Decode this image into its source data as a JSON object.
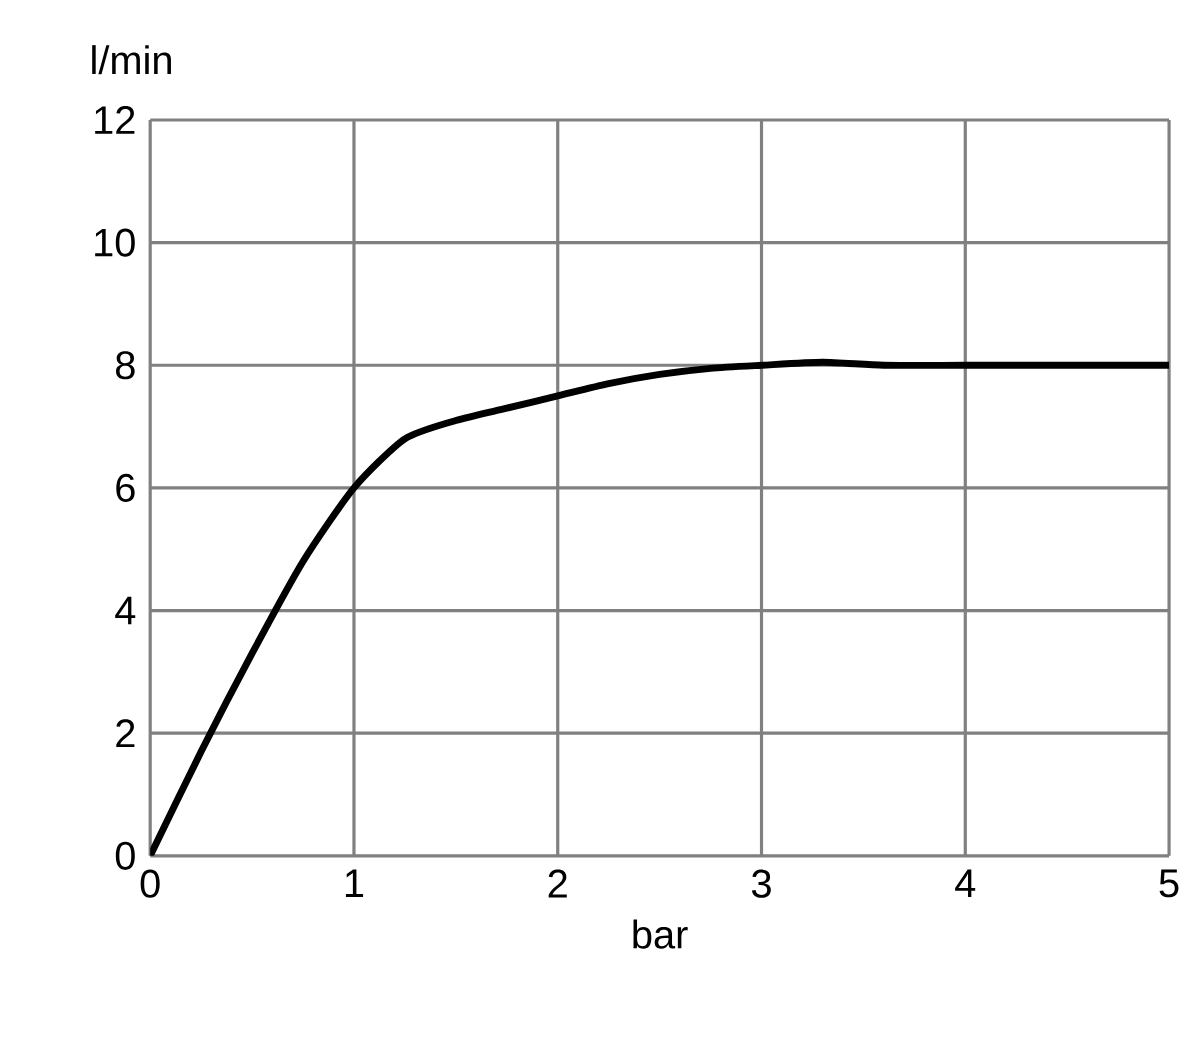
{
  "chart_data": {
    "type": "line",
    "xlabel": "bar",
    "ylabel": "l/min",
    "x": [
      0,
      0.25,
      0.5,
      0.75,
      1,
      1.25,
      1.5,
      1.75,
      2,
      2.25,
      2.5,
      2.75,
      3,
      3.3,
      3.6,
      4,
      4.5,
      5
    ],
    "series": [
      {
        "color": "#000000",
        "values": [
          0,
          1.7,
          3.3,
          4.8,
          6,
          6.8,
          7.1,
          7.3,
          7.5,
          7.7,
          7.85,
          7.95,
          8,
          8.05,
          8,
          8,
          8,
          8
        ]
      }
    ],
    "xlim": [
      0,
      5
    ],
    "ylim": [
      0,
      12
    ],
    "xticks": [
      0,
      1,
      2,
      3,
      4,
      5
    ],
    "yticks": [
      0,
      2,
      4,
      6,
      8,
      10,
      12
    ],
    "grid": true,
    "marker": "none",
    "line_style": "solid"
  }
}
